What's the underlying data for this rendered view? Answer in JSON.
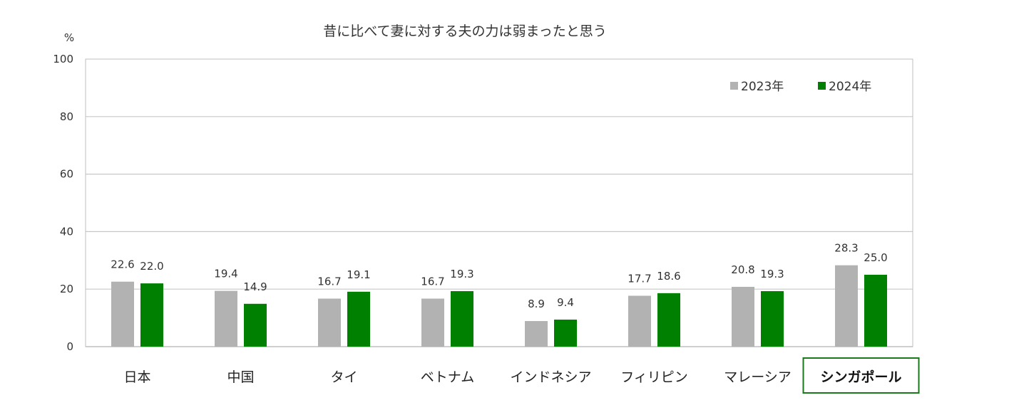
{
  "chart_data": {
    "type": "bar",
    "title": "昔に比べて妻に対する夫の力は弱まったと思う",
    "unit_label": "%",
    "ylim": [
      0,
      100
    ],
    "yticks": [
      "0",
      "20",
      "40",
      "60",
      "80",
      "100"
    ],
    "grid": true,
    "legend_position": "top-right",
    "categories": [
      "日本",
      "中国",
      "タイ",
      "ベトナム",
      "インドネシア",
      "フィリピン",
      "マレーシア",
      "シンガポール"
    ],
    "highlighted_category": "シンガポール",
    "series": [
      {
        "name": "2023年",
        "color": "#b2b2b2",
        "values": [
          22.6,
          19.4,
          16.7,
          16.7,
          8.9,
          17.7,
          20.8,
          28.3
        ],
        "labels": [
          "22.6",
          "19.4",
          "16.7",
          "16.7",
          "8.9",
          "17.7",
          "20.8",
          "28.3"
        ]
      },
      {
        "name": "2024年",
        "color": "#008000",
        "values": [
          22.0,
          14.9,
          19.1,
          19.3,
          9.4,
          18.6,
          19.3,
          25.0
        ],
        "labels": [
          "22.0",
          "14.9",
          "19.1",
          "19.3",
          "9.4",
          "18.6",
          "19.3",
          "25.0"
        ]
      }
    ],
    "colors": {
      "highlight_border": "#1a7a1a",
      "gridline": "#c8c8c8",
      "plot_border": "#bfbfbf"
    }
  }
}
